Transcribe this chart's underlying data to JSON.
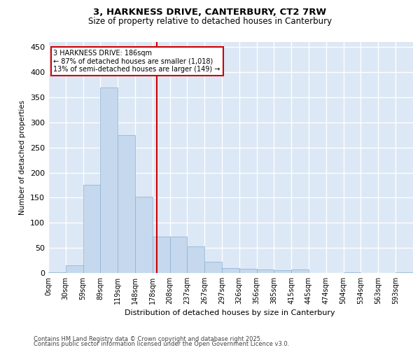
{
  "title_line1": "3, HARKNESS DRIVE, CANTERBURY, CT2 7RW",
  "title_line2": "Size of property relative to detached houses in Canterbury",
  "xlabel": "Distribution of detached houses by size in Canterbury",
  "ylabel": "Number of detached properties",
  "background_color": "#dce8f5",
  "bar_color": "#c5d8ed",
  "bar_edge_color": "#8ab0d0",
  "bin_labels": [
    "0sqm",
    "30sqm",
    "59sqm",
    "89sqm",
    "119sqm",
    "148sqm",
    "178sqm",
    "208sqm",
    "237sqm",
    "267sqm",
    "297sqm",
    "326sqm",
    "356sqm",
    "385sqm",
    "415sqm",
    "445sqm",
    "474sqm",
    "504sqm",
    "534sqm",
    "563sqm",
    "593sqm"
  ],
  "bar_values": [
    2,
    15,
    175,
    370,
    275,
    152,
    72,
    72,
    53,
    22,
    10,
    9,
    7,
    5,
    7,
    0,
    0,
    1,
    0,
    0,
    1
  ],
  "ylim": [
    0,
    460
  ],
  "yticks": [
    0,
    50,
    100,
    150,
    200,
    250,
    300,
    350,
    400,
    450
  ],
  "red_line_bin": 6.27,
  "annotation_title": "3 HARKNESS DRIVE: 186sqm",
  "annotation_line1": "← 87% of detached houses are smaller (1,018)",
  "annotation_line2": "13% of semi-detached houses are larger (149) →",
  "footer_line1": "Contains HM Land Registry data © Crown copyright and database right 2025.",
  "footer_line2": "Contains public sector information licensed under the Open Government Licence v3.0.",
  "grid_color": "#ffffff",
  "red_line_color": "#cc0000",
  "annotation_box_color": "#cc0000",
  "title_fontsize": 9.5,
  "subtitle_fontsize": 8.5,
  "ylabel_fontsize": 7.5,
  "xlabel_fontsize": 8,
  "tick_fontsize": 7,
  "ann_fontsize": 7,
  "footer_fontsize": 6
}
